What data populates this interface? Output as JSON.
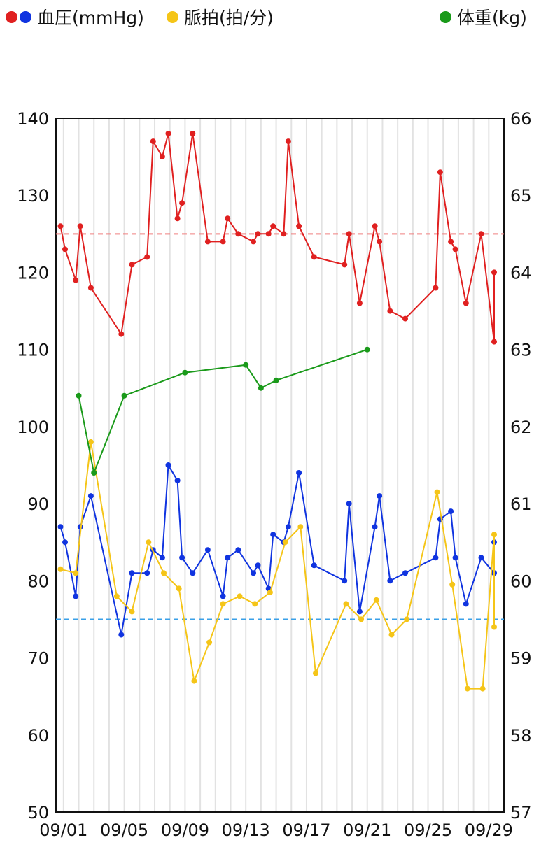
{
  "legend": {
    "bp_label": "血圧(mmHg)",
    "pulse_label": "脈拍(拍/分)",
    "weight_label": "体重(kg)",
    "colors": {
      "systolic": "#e02020",
      "diastolic": "#1034e0",
      "pulse": "#f5c518",
      "weight": "#1a9a1a"
    }
  },
  "chart_data": {
    "type": "line",
    "x_axis": {
      "unit": "day-of-period (Aug 31 - Sep 29)",
      "min": 31.5,
      "max": 61,
      "tick_values": [
        32,
        36,
        40,
        44,
        48,
        52,
        56,
        60
      ],
      "tick_labels": [
        "09/01",
        "09/05",
        "09/09",
        "09/13",
        "09/17",
        "09/21",
        "09/25",
        "09/29"
      ]
    },
    "y_left": {
      "min": 50,
      "max": 140,
      "ticks": [
        140,
        130,
        120,
        110,
        100,
        90,
        80,
        70,
        60,
        50
      ]
    },
    "y_right": {
      "min": 57,
      "max": 66,
      "ticks": [
        66,
        65,
        64,
        63,
        62,
        61,
        60,
        59,
        58,
        57
      ]
    },
    "grid": "vertical",
    "reference_lines": [
      {
        "axis": "left",
        "value": 125,
        "color": "#f08080"
      },
      {
        "axis": "left",
        "value": 75,
        "color": "#3aa0e8"
      }
    ],
    "series": [
      {
        "key": "systolic",
        "axis": "left",
        "color": "#e02020",
        "points": [
          [
            31.8,
            126
          ],
          [
            32.1,
            123
          ],
          [
            32.8,
            119
          ],
          [
            33.1,
            126
          ],
          [
            33.8,
            118
          ],
          [
            35.8,
            112
          ],
          [
            36.5,
            121
          ],
          [
            37.5,
            122
          ],
          [
            37.9,
            137
          ],
          [
            38.5,
            135
          ],
          [
            38.9,
            138
          ],
          [
            39.5,
            127
          ],
          [
            39.8,
            129
          ],
          [
            40.5,
            138
          ],
          [
            41.5,
            124
          ],
          [
            42.5,
            124
          ],
          [
            42.8,
            127
          ],
          [
            43.5,
            125
          ],
          [
            44.5,
            124
          ],
          [
            44.8,
            125
          ],
          [
            45.5,
            125
          ],
          [
            45.8,
            126
          ],
          [
            46.5,
            125
          ],
          [
            46.8,
            137
          ],
          [
            47.5,
            126
          ],
          [
            48.5,
            122
          ],
          [
            50.5,
            121
          ],
          [
            50.8,
            125
          ],
          [
            51.5,
            116
          ],
          [
            52.5,
            126
          ],
          [
            52.8,
            124
          ],
          [
            53.5,
            115
          ],
          [
            54.5,
            114
          ],
          [
            56.5,
            118
          ],
          [
            56.8,
            133
          ],
          [
            57.5,
            124
          ],
          [
            57.8,
            123
          ],
          [
            58.5,
            116
          ],
          [
            59.5,
            125
          ],
          [
            60.5,
            111
          ],
          [
            61.5,
            120
          ]
        ]
      },
      {
        "key": "diastolic",
        "axis": "left",
        "color": "#1034e0",
        "points": [
          [
            31.8,
            87
          ],
          [
            32.1,
            85
          ],
          [
            32.8,
            78
          ],
          [
            33.1,
            87
          ],
          [
            33.8,
            91
          ],
          [
            35.8,
            73
          ],
          [
            36.5,
            81
          ],
          [
            37.5,
            81
          ],
          [
            37.9,
            84
          ],
          [
            38.5,
            83
          ],
          [
            38.9,
            95
          ],
          [
            39.5,
            93
          ],
          [
            39.8,
            83
          ],
          [
            40.5,
            81
          ],
          [
            41.5,
            84
          ],
          [
            42.5,
            78
          ],
          [
            42.8,
            83
          ],
          [
            43.5,
            84
          ],
          [
            44.5,
            81
          ],
          [
            44.8,
            82
          ],
          [
            45.5,
            79
          ],
          [
            45.8,
            86
          ],
          [
            46.5,
            85
          ],
          [
            46.8,
            87
          ],
          [
            47.5,
            94
          ],
          [
            48.5,
            82
          ],
          [
            50.5,
            80
          ],
          [
            50.8,
            90
          ],
          [
            51.5,
            76
          ],
          [
            52.5,
            87
          ],
          [
            52.8,
            91
          ],
          [
            53.5,
            80
          ],
          [
            54.5,
            81
          ],
          [
            56.5,
            83
          ],
          [
            56.8,
            88
          ],
          [
            57.5,
            89
          ],
          [
            57.8,
            83
          ],
          [
            58.5,
            77
          ],
          [
            59.5,
            83
          ],
          [
            60.5,
            81
          ],
          [
            61.5,
            85
          ]
        ]
      },
      {
        "key": "pulse",
        "axis": "left",
        "color": "#f5c518",
        "points": [
          [
            31.8,
            81.5
          ],
          [
            32.8,
            81
          ],
          [
            33.8,
            98
          ],
          [
            35.5,
            78
          ],
          [
            36.5,
            76
          ],
          [
            37.6,
            85
          ],
          [
            38.6,
            81
          ],
          [
            39.6,
            79
          ],
          [
            40.6,
            67
          ],
          [
            41.6,
            72
          ],
          [
            42.5,
            77
          ],
          [
            43.6,
            78
          ],
          [
            44.6,
            77
          ],
          [
            45.6,
            78.5
          ],
          [
            46.6,
            85
          ],
          [
            47.6,
            87
          ],
          [
            48.6,
            68
          ],
          [
            50.6,
            77
          ],
          [
            51.6,
            75
          ],
          [
            52.6,
            77.5
          ],
          [
            53.6,
            73
          ],
          [
            54.6,
            75
          ],
          [
            56.6,
            91.5
          ],
          [
            57.6,
            79.5
          ],
          [
            58.6,
            66
          ],
          [
            59.6,
            66
          ],
          [
            60.6,
            86
          ],
          [
            61.6,
            74
          ]
        ]
      },
      {
        "key": "weight",
        "axis": "right",
        "color": "#1a9a1a",
        "points": [
          [
            33,
            62.4
          ],
          [
            34,
            61.4
          ],
          [
            36,
            62.4
          ],
          [
            40,
            62.7
          ],
          [
            44,
            62.8
          ],
          [
            45,
            62.5
          ],
          [
            46,
            62.6
          ],
          [
            52,
            63
          ]
        ]
      }
    ]
  }
}
